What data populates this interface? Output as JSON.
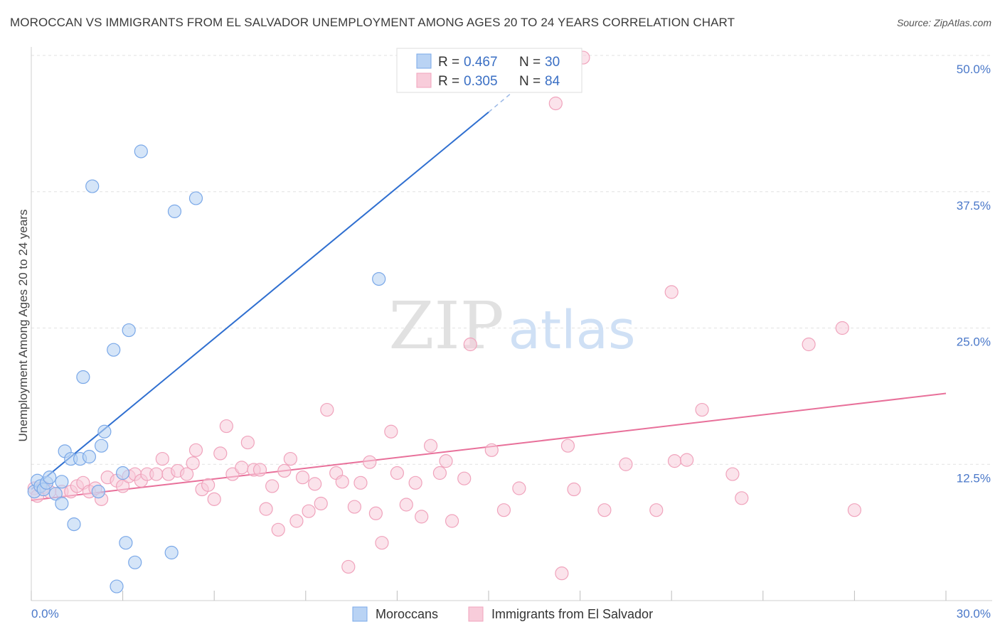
{
  "header": {
    "title": "MOROCCAN VS IMMIGRANTS FROM EL SALVADOR UNEMPLOYMENT AMONG AGES 20 TO 24 YEARS CORRELATION CHART",
    "source": "Source: ZipAtlas.com"
  },
  "watermark": {
    "zip": "ZIP",
    "atlas": "atlas"
  },
  "chart_data": {
    "type": "scatter",
    "title": "MOROCCAN VS IMMIGRANTS FROM EL SALVADOR UNEMPLOYMENT AMONG AGES 20 TO 24 YEARS CORRELATION CHART",
    "xlabel": "",
    "ylabel": "Unemployment Among Ages 20 to 24 years",
    "xlim": [
      0,
      30
    ],
    "ylim": [
      0,
      50
    ],
    "x_tick_labels": {
      "min": "0.0%",
      "max": "30.0%"
    },
    "y_ticks": [
      {
        "value": 12.5,
        "label": "12.5%"
      },
      {
        "value": 25.0,
        "label": "25.0%"
      },
      {
        "value": 37.5,
        "label": "37.5%"
      },
      {
        "value": 50.0,
        "label": "50.0%"
      }
    ],
    "grid": true,
    "legend_position": "bottom-center",
    "stats_box": {
      "r_label": "R =",
      "n_label": "N =",
      "rows": [
        {
          "series": "Moroccans",
          "r": "0.467",
          "n": "30"
        },
        {
          "series": "Immigrants from El Salvador",
          "r": "0.305",
          "n": "84"
        }
      ]
    },
    "series": [
      {
        "name": "Moroccans",
        "color": "#7aa8e8",
        "fill": "#b9d3f4",
        "line_color": "#2f6fd0",
        "trendline": {
          "x": [
            0.0,
            15.0
          ],
          "y": [
            10.2,
            44.8
          ],
          "dashed_to": [
            17.0,
            49.5
          ]
        },
        "points": [
          [
            0.1,
            10.0
          ],
          [
            0.2,
            11.0
          ],
          [
            0.3,
            10.5
          ],
          [
            0.4,
            10.2
          ],
          [
            0.5,
            10.8
          ],
          [
            0.6,
            11.3
          ],
          [
            0.8,
            9.8
          ],
          [
            1.0,
            8.9
          ],
          [
            1.1,
            13.7
          ],
          [
            1.3,
            13.0
          ],
          [
            1.4,
            7.0
          ],
          [
            1.6,
            13.0
          ],
          [
            1.7,
            20.5
          ],
          [
            1.9,
            13.2
          ],
          [
            2.0,
            38.0
          ],
          [
            2.2,
            10.0
          ],
          [
            2.3,
            14.2
          ],
          [
            2.4,
            15.5
          ],
          [
            2.7,
            23.0
          ],
          [
            2.8,
            1.3
          ],
          [
            3.0,
            11.7
          ],
          [
            3.1,
            5.3
          ],
          [
            3.2,
            24.8
          ],
          [
            3.4,
            3.5
          ],
          [
            3.6,
            41.2
          ],
          [
            4.6,
            4.4
          ],
          [
            4.7,
            35.7
          ],
          [
            5.4,
            36.9
          ],
          [
            11.4,
            29.5
          ],
          [
            1.0,
            10.9
          ]
        ]
      },
      {
        "name": "Immigrants from El Salvador",
        "color": "#f0a3bc",
        "fill": "#f8ccda",
        "line_color": "#e8709a",
        "trendline": {
          "x": [
            0.0,
            30.0
          ],
          "y": [
            9.2,
            19.0
          ]
        },
        "points": [
          [
            0.1,
            10.3
          ],
          [
            0.2,
            9.6
          ],
          [
            0.4,
            10.4
          ],
          [
            0.6,
            10.0
          ],
          [
            1.0,
            10.0
          ],
          [
            1.3,
            10.0
          ],
          [
            1.5,
            10.5
          ],
          [
            1.7,
            10.8
          ],
          [
            1.9,
            10.0
          ],
          [
            2.1,
            10.3
          ],
          [
            2.3,
            9.3
          ],
          [
            2.5,
            11.3
          ],
          [
            2.8,
            11.0
          ],
          [
            3.0,
            10.5
          ],
          [
            3.2,
            11.4
          ],
          [
            3.4,
            11.6
          ],
          [
            3.6,
            11.0
          ],
          [
            3.8,
            11.6
          ],
          [
            4.1,
            11.6
          ],
          [
            4.3,
            13.0
          ],
          [
            4.5,
            11.6
          ],
          [
            4.8,
            11.9
          ],
          [
            5.1,
            11.6
          ],
          [
            5.3,
            12.6
          ],
          [
            5.4,
            13.8
          ],
          [
            5.6,
            10.2
          ],
          [
            5.8,
            10.6
          ],
          [
            6.0,
            9.3
          ],
          [
            6.2,
            13.5
          ],
          [
            6.4,
            16.0
          ],
          [
            6.6,
            11.6
          ],
          [
            6.9,
            12.2
          ],
          [
            7.1,
            14.5
          ],
          [
            7.3,
            12.0
          ],
          [
            7.5,
            12.0
          ],
          [
            7.7,
            8.4
          ],
          [
            7.9,
            10.5
          ],
          [
            8.1,
            6.5
          ],
          [
            8.3,
            11.9
          ],
          [
            8.5,
            13.0
          ],
          [
            8.7,
            7.3
          ],
          [
            8.9,
            11.3
          ],
          [
            9.1,
            8.2
          ],
          [
            9.3,
            10.7
          ],
          [
            9.5,
            8.9
          ],
          [
            9.7,
            17.5
          ],
          [
            10.0,
            11.7
          ],
          [
            10.2,
            10.9
          ],
          [
            10.4,
            3.1
          ],
          [
            10.6,
            8.6
          ],
          [
            10.8,
            10.8
          ],
          [
            11.1,
            12.7
          ],
          [
            11.3,
            8.0
          ],
          [
            11.5,
            5.3
          ],
          [
            11.8,
            15.5
          ],
          [
            12.0,
            11.7
          ],
          [
            12.3,
            8.8
          ],
          [
            12.6,
            10.8
          ],
          [
            12.8,
            7.7
          ],
          [
            13.1,
            14.2
          ],
          [
            13.4,
            11.7
          ],
          [
            13.6,
            12.8
          ],
          [
            13.8,
            7.3
          ],
          [
            14.2,
            11.2
          ],
          [
            14.4,
            23.5
          ],
          [
            15.1,
            13.8
          ],
          [
            15.5,
            8.3
          ],
          [
            16.0,
            10.3
          ],
          [
            17.2,
            45.6
          ],
          [
            17.4,
            2.5
          ],
          [
            17.6,
            14.2
          ],
          [
            17.8,
            10.2
          ],
          [
            18.1,
            49.8
          ],
          [
            18.8,
            8.3
          ],
          [
            19.5,
            12.5
          ],
          [
            20.5,
            8.3
          ],
          [
            21.0,
            28.3
          ],
          [
            21.1,
            12.8
          ],
          [
            21.5,
            12.9
          ],
          [
            22.0,
            17.5
          ],
          [
            23.0,
            11.6
          ],
          [
            23.3,
            9.4
          ],
          [
            25.5,
            23.5
          ],
          [
            26.6,
            25.0
          ]
        ]
      }
    ],
    "extra_points": [
      {
        "series": "Immigrants from El Salvador",
        "point": [
          27.0,
          8.3
        ]
      }
    ]
  },
  "legend": {
    "items": [
      {
        "label": "Moroccans"
      },
      {
        "label": "Immigrants from El Salvador"
      }
    ]
  }
}
